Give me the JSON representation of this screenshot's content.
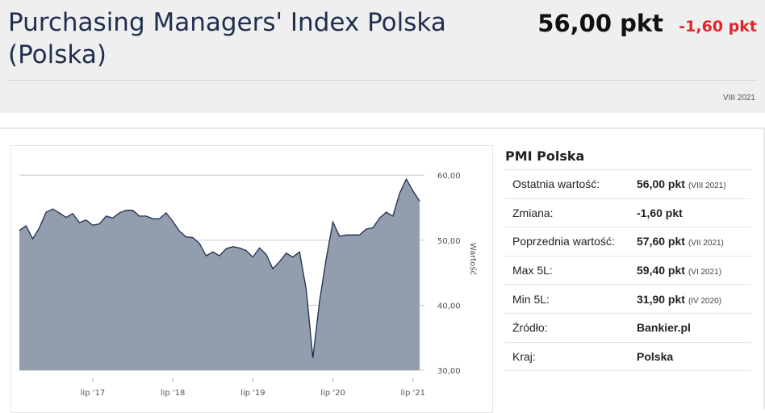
{
  "header": {
    "title": "Purchasing Managers' Index Polska (Polska)",
    "value": "56,00 pkt",
    "change": "-1,60 pkt",
    "date": "VIII 2021"
  },
  "panel": {
    "title": "PMI Polska",
    "rows": [
      {
        "label": "Ostatnia wartość:",
        "value": "56,00 pkt",
        "period": "(VIII 2021)"
      },
      {
        "label": "Zmiana:",
        "value": "-1,60 pkt",
        "period": ""
      },
      {
        "label": "Poprzednia wartość:",
        "value": "57,60 pkt",
        "period": "(VII 2021)"
      },
      {
        "label": "Max 5L:",
        "value": "59,40 pkt",
        "period": "(VI 2021)"
      },
      {
        "label": "Min 5L:",
        "value": "31,90 pkt",
        "period": "(IV 2020)"
      },
      {
        "label": "Źródło:",
        "value": "Bankier.pl",
        "period": ""
      },
      {
        "label": "Kraj:",
        "value": "Polska",
        "period": ""
      }
    ]
  },
  "chart_data": {
    "type": "area",
    "ylabel": "Wartość",
    "ylim": [
      30,
      62
    ],
    "yticks": [
      30,
      40,
      50,
      60
    ],
    "ytick_labels": [
      "30,00",
      "40,00",
      "50,00",
      "60,00"
    ],
    "xtick_labels": [
      "lip '17",
      "lip '18",
      "lip '19",
      "lip '20",
      "lip '21"
    ],
    "xtick_months": [
      "2017-07",
      "2018-07",
      "2019-07",
      "2020-07",
      "2021-07"
    ],
    "x": [
      "2016-08",
      "2016-09",
      "2016-10",
      "2016-11",
      "2016-12",
      "2017-01",
      "2017-02",
      "2017-03",
      "2017-04",
      "2017-05",
      "2017-06",
      "2017-07",
      "2017-08",
      "2017-09",
      "2017-10",
      "2017-11",
      "2017-12",
      "2018-01",
      "2018-02",
      "2018-03",
      "2018-04",
      "2018-05",
      "2018-06",
      "2018-07",
      "2018-08",
      "2018-09",
      "2018-10",
      "2018-11",
      "2018-12",
      "2019-01",
      "2019-02",
      "2019-03",
      "2019-04",
      "2019-05",
      "2019-06",
      "2019-07",
      "2019-08",
      "2019-09",
      "2019-10",
      "2019-11",
      "2019-12",
      "2020-01",
      "2020-02",
      "2020-03",
      "2020-04",
      "2020-05",
      "2020-06",
      "2020-07",
      "2020-08",
      "2020-09",
      "2020-10",
      "2020-11",
      "2020-12",
      "2021-01",
      "2021-02",
      "2021-03",
      "2021-04",
      "2021-05",
      "2021-06",
      "2021-07",
      "2021-08"
    ],
    "values": [
      51.5,
      52.2,
      50.2,
      51.9,
      54.3,
      54.8,
      54.2,
      53.5,
      54.1,
      52.7,
      53.1,
      52.3,
      52.5,
      53.7,
      53.4,
      54.2,
      54.6,
      54.6,
      53.7,
      53.7,
      53.3,
      53.3,
      54.2,
      52.9,
      51.4,
      50.5,
      50.4,
      49.5,
      47.6,
      48.2,
      47.6,
      48.7,
      49.0,
      48.8,
      48.4,
      47.4,
      48.8,
      47.8,
      45.6,
      46.7,
      48.0,
      47.4,
      48.2,
      42.4,
      31.9,
      40.6,
      47.2,
      52.8,
      50.6,
      50.8,
      50.8,
      50.8,
      51.7,
      51.9,
      53.4,
      54.3,
      53.7,
      57.2,
      59.4,
      57.6,
      56.0
    ],
    "colors": {
      "fill": "#929eae",
      "line": "#1f2d4f",
      "grid": "#c8c8c8"
    }
  }
}
